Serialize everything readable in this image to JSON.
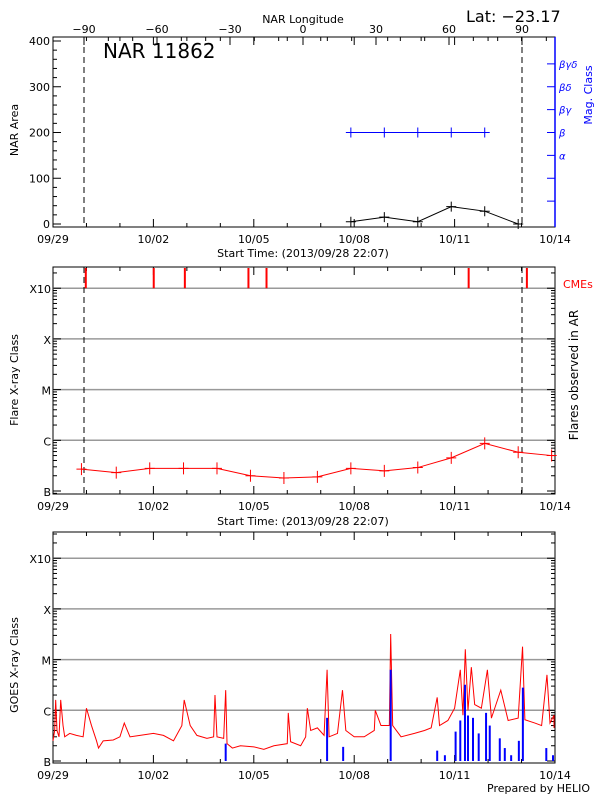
{
  "header": {
    "latitude_label": "Lat: −23.17",
    "region_title": "NAR 11862",
    "footer": "Prepared by HELIO"
  },
  "colors": {
    "area": "#000000",
    "mag_class": "#0000ff",
    "flares": "#ff0000",
    "cmes": "#ff0000",
    "goes": "#ff0000",
    "ar_flares": "#0000ff",
    "grid": "#999999"
  },
  "chart_data": [
    {
      "type": "line",
      "panel": "nar-area",
      "ylabel": "NAR Area",
      "ylabel_right": "Mag. Class",
      "xlabel": "Start Time: (2013/09/28 22:07)",
      "x_top_label": "NAR Longitude",
      "x_top_ticks": [
        "-90",
        "-60",
        "-30",
        "0",
        "30",
        "60",
        "90"
      ],
      "x_ticks": [
        "09/29",
        "10/02",
        "10/05",
        "10/08",
        "10/11",
        "10/14"
      ],
      "xlim_days_from_0929": [
        0,
        15
      ],
      "ylim": [
        0,
        400
      ],
      "y_ticks": [
        "0",
        "100",
        "200",
        "300",
        "400"
      ],
      "limb_markers_longitude": [
        -90,
        90
      ],
      "mag_class_ticks": [
        {
          "value": 50,
          "label": ""
        },
        {
          "value": 100,
          "label": ""
        },
        {
          "value": 150,
          "label": "α"
        },
        {
          "value": 200,
          "label": "β"
        },
        {
          "value": 250,
          "label": "βγ"
        },
        {
          "value": 300,
          "label": "βδ"
        },
        {
          "value": 350,
          "label": "βγδ"
        }
      ],
      "series": [
        {
          "key": "area",
          "x_days": [
            8.9,
            9.9,
            10.9,
            11.9,
            12.9,
            13.9
          ],
          "values": [
            5,
            15,
            5,
            38,
            28,
            0
          ]
        },
        {
          "key": "mag_class",
          "x_days": [
            8.9,
            9.9,
            10.9,
            11.9,
            12.9
          ],
          "values": [
            "β",
            "β",
            "β",
            "β",
            "β"
          ]
        }
      ]
    },
    {
      "type": "line",
      "panel": "flares",
      "ylabel": "Flare X-ray Class",
      "ylabel_right": "Flares observed in AR",
      "xlabel": "Start Time: (2013/09/28 22:07)",
      "x_ticks": [
        "09/29",
        "10/02",
        "10/05",
        "10/08",
        "10/11",
        "10/14"
      ],
      "y_ticks": [
        "B",
        "C",
        "M",
        "X",
        "X10"
      ],
      "y_scale": "log",
      "grid": true,
      "cme_label": "CMEs",
      "cmes_days": [
        0.98,
        3.01,
        3.94,
        5.84,
        6.38,
        12.42,
        14.16
      ],
      "series": [
        {
          "key": "flare_class",
          "x_days": [
            0.85,
            1.89,
            2.89,
            3.9,
            4.9,
            5.9,
            6.9,
            7.9,
            8.9,
            9.9,
            10.9,
            11.9,
            12.9,
            13.9,
            14.9
          ],
          "values": [
            "B2.7",
            "B2.3",
            "B2.8",
            "B2.8",
            "B2.8",
            "B2.0",
            "B1.8",
            "B1.9",
            "B2.8",
            "B2.5",
            "B2.9",
            "B4.5",
            "B8.7",
            "B5.8",
            "B5.0"
          ]
        }
      ]
    },
    {
      "type": "line",
      "panel": "goes",
      "ylabel": "GOES X-ray Class",
      "x_ticks": [
        "09/29",
        "10/02",
        "10/05",
        "10/08",
        "10/11",
        "10/14"
      ],
      "y_ticks": [
        "B",
        "C",
        "M",
        "X",
        "X10"
      ],
      "y_scale": "log",
      "grid": true,
      "series": [
        {
          "key": "goes_flux",
          "points": [
            [
              0,
              "B2.5"
            ],
            [
              0.05,
              "B4"
            ],
            [
              0.08,
              "C1.6"
            ],
            [
              0.12,
              "B4"
            ],
            [
              0.18,
              "B3"
            ],
            [
              0.23,
              "C1.6"
            ],
            [
              0.3,
              "B5"
            ],
            [
              0.35,
              "B3"
            ],
            [
              0.5,
              "B3.5"
            ],
            [
              0.7,
              "B3.2"
            ],
            [
              0.9,
              "B3"
            ],
            [
              1.0,
              "C1.1"
            ],
            [
              1.15,
              "B5"
            ],
            [
              1.3,
              "B2.5"
            ],
            [
              1.36,
              "B1.8"
            ],
            [
              1.5,
              "B2.5"
            ],
            [
              1.8,
              "B2.6"
            ],
            [
              2.0,
              "B3"
            ],
            [
              2.13,
              "B5.6"
            ],
            [
              2.3,
              "B3"
            ],
            [
              2.6,
              "B3.2"
            ],
            [
              3.0,
              "B3.5"
            ],
            [
              3.3,
              "B3.2"
            ],
            [
              3.6,
              "B2.5"
            ],
            [
              3.85,
              "B5"
            ],
            [
              3.92,
              "C1.6"
            ],
            [
              4.1,
              "B5"
            ],
            [
              4.3,
              "B3.2"
            ],
            [
              4.6,
              "B2.8"
            ],
            [
              4.8,
              "B3"
            ],
            [
              4.84,
              "C2.0"
            ],
            [
              4.9,
              "B3"
            ],
            [
              5.1,
              "B2.8"
            ],
            [
              5.16,
              "C2.5"
            ],
            [
              5.2,
              "B2.2"
            ],
            [
              5.36,
              "B1.8"
            ],
            [
              5.6,
              "B2"
            ],
            [
              6.0,
              "B1.9"
            ],
            [
              6.3,
              "B1.7"
            ],
            [
              6.6,
              "B2"
            ],
            [
              7.0,
              "B2.2"
            ],
            [
              7.03,
              "B8.9"
            ],
            [
              7.1,
              "B2.4"
            ],
            [
              7.4,
              "B2"
            ],
            [
              7.55,
              "B3"
            ],
            [
              7.6,
              "C1.1"
            ],
            [
              7.7,
              "B4"
            ],
            [
              7.9,
              "B4.5"
            ],
            [
              8.1,
              "B3.2"
            ],
            [
              8.19,
              "C6.3"
            ],
            [
              8.25,
              "B3"
            ],
            [
              8.5,
              "B3.5"
            ],
            [
              8.65,
              "C2.5"
            ],
            [
              8.75,
              "B4"
            ],
            [
              9.0,
              "B3"
            ],
            [
              9.3,
              "B3"
            ],
            [
              9.6,
              "B4"
            ],
            [
              9.63,
              "C1.0"
            ],
            [
              9.8,
              "B5"
            ],
            [
              10.05,
              "B5"
            ],
            [
              10.09,
              "M3.2"
            ],
            [
              10.15,
              "B5"
            ],
            [
              10.4,
              "B3"
            ],
            [
              10.8,
              "B3.5"
            ],
            [
              11.1,
              "B4"
            ],
            [
              11.3,
              "B4.5"
            ],
            [
              11.48,
              "C1.8"
            ],
            [
              11.55,
              "B5"
            ],
            [
              11.8,
              "B6.3"
            ],
            [
              12.0,
              "C1.1"
            ],
            [
              12.17,
              "C6.3"
            ],
            [
              12.25,
              "B8"
            ],
            [
              12.32,
              "M1.6"
            ],
            [
              12.4,
              "C1.0"
            ],
            [
              12.5,
              "C7.1"
            ],
            [
              12.6,
              "C1.3"
            ],
            [
              12.8,
              "C1.1"
            ],
            [
              12.98,
              "C6.3"
            ],
            [
              13.1,
              "B7"
            ],
            [
              13.38,
              "C2.5"
            ],
            [
              13.6,
              "B6.3"
            ],
            [
              13.9,
              "B7"
            ],
            [
              14.03,
              "M1.8"
            ],
            [
              14.1,
              "B6.5"
            ],
            [
              14.4,
              "B5.6"
            ],
            [
              14.6,
              "B5"
            ],
            [
              14.76,
              "C5.0"
            ],
            [
              14.85,
              "B5.6"
            ],
            [
              15.0,
              "B8"
            ],
            [
              15.1,
              "B4.5"
            ]
          ]
        },
        {
          "key": "ar_flares",
          "points": [
            [
              5.16,
              "B2.2"
            ],
            [
              8.19,
              "B7.1"
            ],
            [
              8.67,
              "B1.9"
            ],
            [
              10.09,
              "C6.3"
            ],
            [
              11.48,
              "B1.6"
            ],
            [
              11.71,
              "B1.3"
            ],
            [
              12.03,
              "B3.8"
            ],
            [
              12.17,
              "B6.3"
            ],
            [
              12.31,
              "C3.2"
            ],
            [
              12.4,
              "B7.9"
            ],
            [
              12.55,
              "B7.1"
            ],
            [
              12.72,
              "B3.5"
            ],
            [
              12.94,
              "B8.9"
            ],
            [
              13.05,
              "B5.0"
            ],
            [
              13.35,
              "B2.8"
            ],
            [
              13.5,
              "B1.8"
            ],
            [
              13.69,
              "B1.3"
            ],
            [
              13.92,
              "B2.5"
            ],
            [
              14.04,
              "C2.8"
            ],
            [
              14.74,
              "B1.8"
            ],
            [
              15.0,
              "B1.3"
            ]
          ]
        }
      ]
    }
  ]
}
